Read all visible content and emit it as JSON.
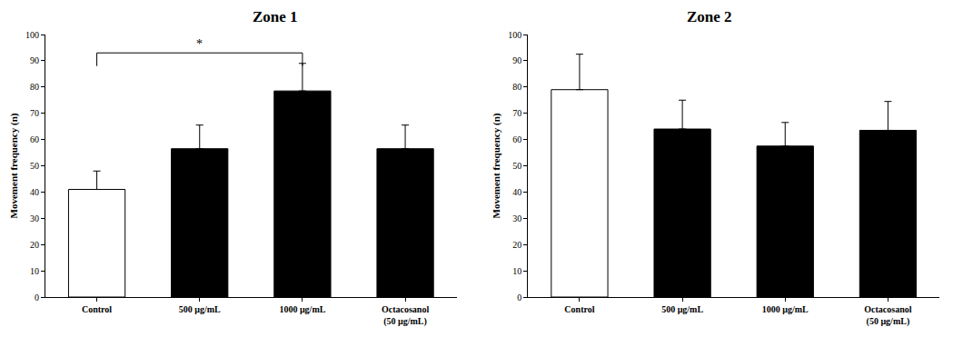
{
  "chart_data": [
    {
      "type": "bar",
      "title": "Zone 1",
      "y_label": "Movement frequency (n)",
      "categories": [
        "Control",
        "500 μg/mL",
        "1000 μg/mL",
        "Octacosanol (50 μg/mL)"
      ],
      "values": [
        41,
        56.5,
        78.5,
        56.5
      ],
      "errors": [
        7,
        9,
        10.5,
        9
      ],
      "colors": [
        "#ffffff",
        "#000000",
        "#000000",
        "#000000"
      ],
      "ylim": [
        0,
        100
      ],
      "yticks": [
        0,
        10,
        20,
        30,
        40,
        50,
        60,
        70,
        80,
        90,
        100
      ],
      "grid": false,
      "annotations": [
        {
          "text": "*",
          "from": "Control",
          "to": "1000 μg/mL"
        }
      ]
    },
    {
      "type": "bar",
      "title": "Zone 2",
      "y_label": "Movement frequency (n)",
      "categories": [
        "Control",
        "500 μg/mL",
        "1000 μg/mL",
        "Octacosanol (50 μg/mL)"
      ],
      "values": [
        79,
        64,
        57.5,
        63.5
      ],
      "errors": [
        13.5,
        11,
        9,
        11
      ],
      "colors": [
        "#ffffff",
        "#000000",
        "#000000",
        "#000000"
      ],
      "ylim": [
        0,
        100
      ],
      "yticks": [
        0,
        10,
        20,
        30,
        40,
        50,
        60,
        70,
        80,
        90,
        100
      ],
      "grid": false
    }
  ]
}
